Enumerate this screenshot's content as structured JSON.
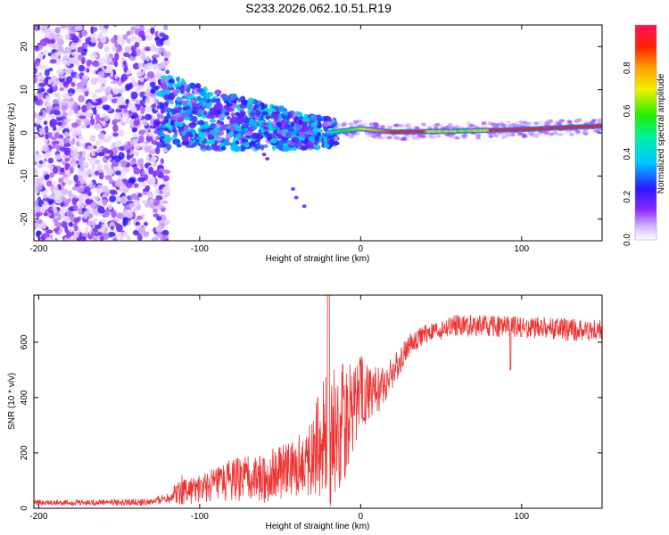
{
  "title": "S233.2026.062.10.51.R19",
  "chart_data": [
    {
      "type": "heatmap",
      "xlabel": "Height of straight line (km)",
      "ylabel": "Frequency (Hz)",
      "xlim": [
        -203,
        150
      ],
      "ylim": [
        -25,
        25
      ],
      "x_ticks": [
        -200,
        -100,
        0,
        100
      ],
      "y_ticks": [
        20,
        10,
        0,
        -10,
        -20
      ],
      "colorbar": {
        "label": "Normalized spectral amplitude",
        "range": [
          0,
          1
        ],
        "ticks": [
          "0.0",
          "0.2",
          "0.4",
          "0.6",
          "0.8"
        ],
        "tick_values": [
          0,
          0.2,
          0.4,
          0.6,
          0.8
        ]
      },
      "ridge": [
        {
          "x": -120,
          "y": 5
        },
        {
          "x": -100,
          "y": 3.5
        },
        {
          "x": -80,
          "y": 2.5
        },
        {
          "x": -60,
          "y": 1.5
        },
        {
          "x": -40,
          "y": 0.5
        },
        {
          "x": -20,
          "y": 0
        },
        {
          "x": 0,
          "y": 1
        },
        {
          "x": 20,
          "y": 0.2
        },
        {
          "x": 60,
          "y": 0.4
        },
        {
          "x": 100,
          "y": 0.8
        },
        {
          "x": 150,
          "y": 1.6
        }
      ]
    },
    {
      "type": "line",
      "xlabel": "Height of straight line (km)",
      "ylabel": "SNR (10 * v/v)",
      "xlim": [
        -203,
        150
      ],
      "ylim": [
        0,
        770
      ],
      "x_ticks": [
        -200,
        -100,
        0,
        100
      ],
      "y_ticks": [
        0,
        200,
        400,
        600
      ],
      "color": "#ee3333",
      "envelope": [
        {
          "x": -203,
          "mean": 20,
          "amp": 10
        },
        {
          "x": -130,
          "mean": 22,
          "amp": 12
        },
        {
          "x": -120,
          "mean": 40,
          "amp": 20
        },
        {
          "x": -110,
          "mean": 70,
          "amp": 60
        },
        {
          "x": -100,
          "mean": 70,
          "amp": 50
        },
        {
          "x": -80,
          "mean": 100,
          "amp": 80
        },
        {
          "x": -60,
          "mean": 110,
          "amp": 90
        },
        {
          "x": -40,
          "mean": 150,
          "amp": 110
        },
        {
          "x": -30,
          "mean": 200,
          "amp": 150
        },
        {
          "x": -20,
          "mean": 250,
          "amp": 260
        },
        {
          "x": -10,
          "mean": 320,
          "amp": 220
        },
        {
          "x": 0,
          "mean": 420,
          "amp": 150
        },
        {
          "x": 10,
          "mean": 420,
          "amp": 90
        },
        {
          "x": 20,
          "mean": 490,
          "amp": 60
        },
        {
          "x": 30,
          "mean": 590,
          "amp": 40
        },
        {
          "x": 40,
          "mean": 630,
          "amp": 35
        },
        {
          "x": 60,
          "mean": 660,
          "amp": 40
        },
        {
          "x": 100,
          "mean": 655,
          "amp": 40
        },
        {
          "x": 150,
          "mean": 640,
          "amp": 40
        }
      ]
    }
  ],
  "colors": {
    "axis": "#000000",
    "line": "#ee3333"
  }
}
